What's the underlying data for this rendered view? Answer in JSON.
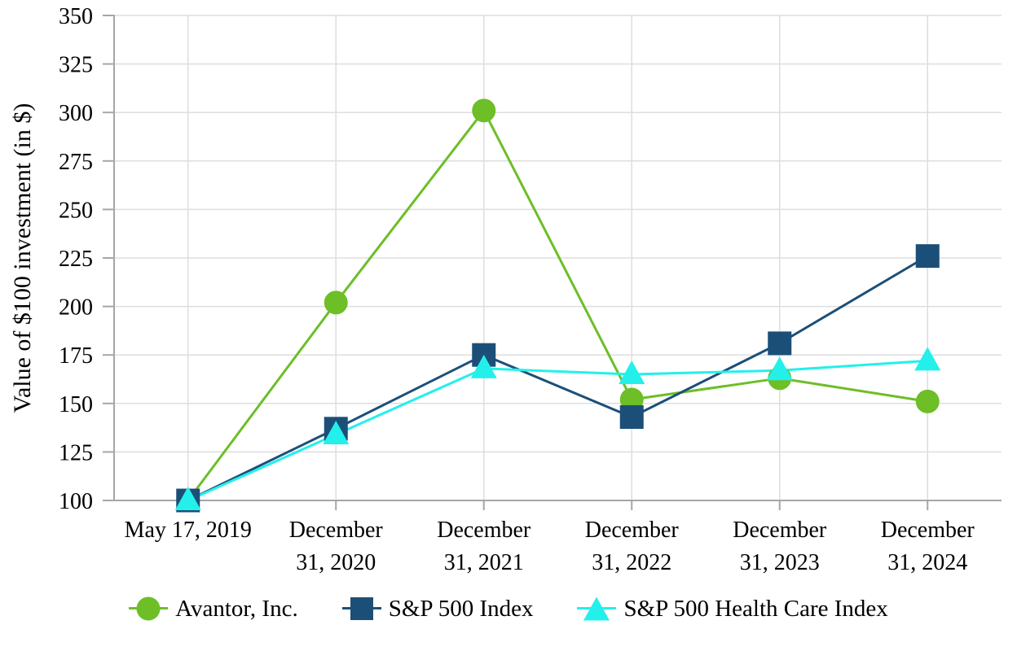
{
  "figure": {
    "background_color": "#ffffff",
    "text_color": "#000000"
  },
  "chart_data": {
    "type": "line",
    "title": "",
    "xlabel": "",
    "ylabel": "Value of $100 investment (in $)",
    "ylim": [
      100,
      350
    ],
    "y_ticks": [
      100,
      125,
      150,
      175,
      200,
      225,
      250,
      275,
      300,
      325,
      350
    ],
    "grid": true,
    "legend_position": "bottom",
    "axis_color": "#A6A6A6",
    "grid_color": "#DEDEDE",
    "categories": [
      "May 17, 2019",
      "December 31, 2020",
      "December 31, 2021",
      "December 31, 2022",
      "December 31, 2023",
      "December 31, 2024"
    ],
    "category_label_lines": [
      [
        "May 17, 2019"
      ],
      [
        "December",
        "31, 2020"
      ],
      [
        "December",
        "31, 2021"
      ],
      [
        "December",
        "31, 2022"
      ],
      [
        "December",
        "31, 2023"
      ],
      [
        "December",
        "31, 2024"
      ]
    ],
    "series": [
      {
        "name": "Avantor, Inc.",
        "marker": "circle",
        "color": "#6DBE27",
        "values": [
          100,
          202,
          301,
          152,
          163,
          151
        ]
      },
      {
        "name": "S&P 500 Index",
        "marker": "square",
        "color": "#1B4F78",
        "values": [
          100,
          137,
          175,
          143,
          181,
          226
        ]
      },
      {
        "name": "S&P 500 Health Care Index",
        "marker": "triangle",
        "color": "#23F0EB",
        "values": [
          100,
          134,
          168,
          165,
          167,
          172
        ]
      }
    ]
  }
}
